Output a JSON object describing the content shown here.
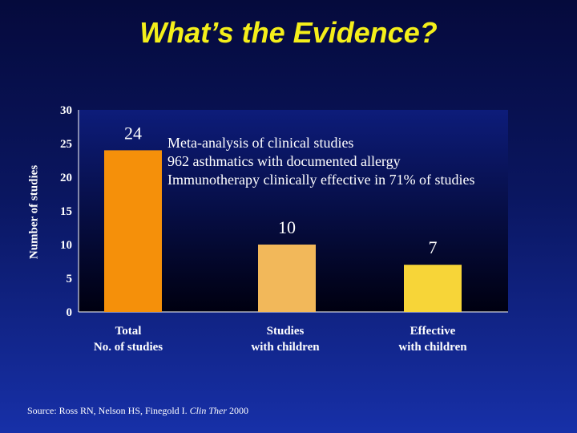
{
  "title": "What’s the Evidence?",
  "chart_data": {
    "type": "bar",
    "categories": [
      [
        "Total",
        "No. of studies"
      ],
      [
        "Studies",
        "with children"
      ],
      [
        "Effective",
        "with children"
      ]
    ],
    "values": [
      24,
      10,
      7
    ],
    "value_labels": [
      "24",
      "10",
      "7"
    ],
    "ylabel": "Number of studies",
    "ylim": [
      0,
      30
    ],
    "yticks": [
      "0",
      "5",
      "10",
      "15",
      "20",
      "25",
      "30"
    ],
    "bar_colors": [
      "#f5900a",
      "#f2b85a",
      "#f7d538"
    ],
    "annotations": [
      "Meta-analysis of clinical studies",
      "962 asthmatics with documented allergy",
      "Immunotherapy clinically effective in 71% of studies"
    ]
  },
  "source": {
    "prefix": "Source: Ross RN, Nelson HS, Finegold I. ",
    "journal": "Clin Ther",
    "suffix": " 2000"
  }
}
